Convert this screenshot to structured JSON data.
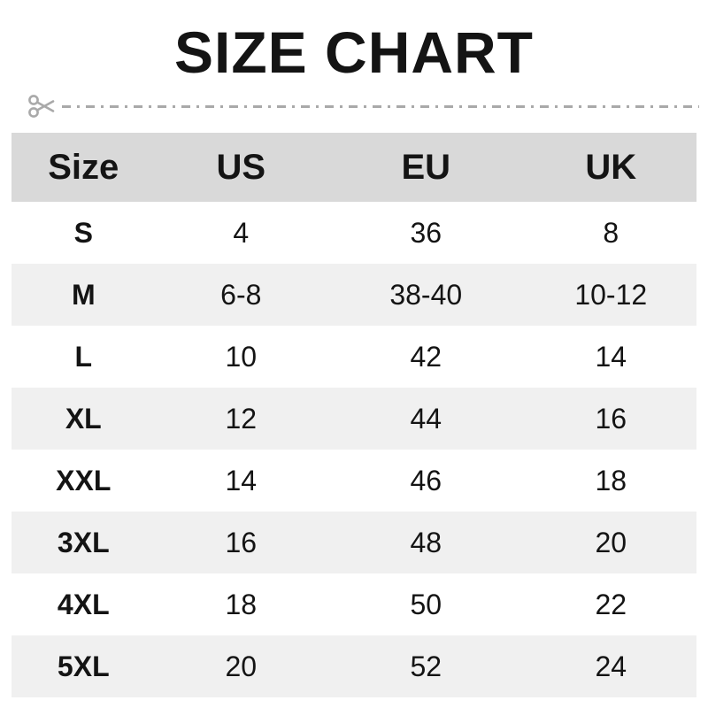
{
  "title": "SIZE CHART",
  "chart_data": {
    "type": "table",
    "title": "SIZE CHART",
    "columns": [
      "Size",
      "US",
      "EU",
      "UK"
    ],
    "rows": [
      [
        "S",
        "4",
        "36",
        "8"
      ],
      [
        "M",
        "6-8",
        "38-40",
        "10-12"
      ],
      [
        "L",
        "10",
        "42",
        "14"
      ],
      [
        "XL",
        "12",
        "44",
        "16"
      ],
      [
        "XXL",
        "14",
        "46",
        "18"
      ],
      [
        "3XL",
        "16",
        "48",
        "20"
      ],
      [
        "4XL",
        "18",
        "50",
        "22"
      ],
      [
        "5XL",
        "20",
        "52",
        "24"
      ]
    ],
    "layout": {
      "shaded_rows": [
        "M",
        "XL",
        "3XL",
        "5XL"
      ],
      "grid": false,
      "header_position": "top"
    }
  },
  "icons": {
    "cut_line_icon": "scissors-icon"
  },
  "colors": {
    "text": "#141414",
    "header_bg": "#d9d9d9",
    "alt_row_bg": "#f0f0f0",
    "cut_line": "#a9a9a9"
  }
}
